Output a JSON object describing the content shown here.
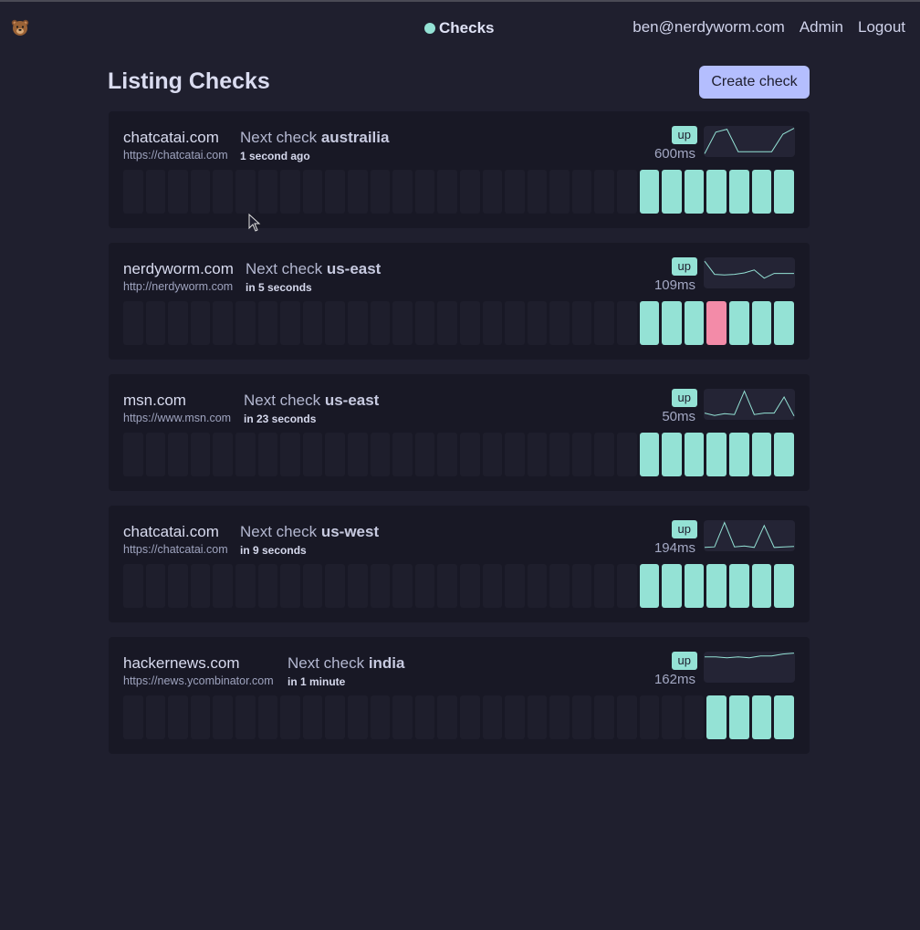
{
  "nav": {
    "logo_icon": "bear-icon",
    "brand": "Checks",
    "brand_dot_color": "#94e2d5",
    "email": "ben@nerdyworm.com",
    "admin": "Admin",
    "logout": "Logout"
  },
  "page": {
    "title": "Listing Checks",
    "create_label": "Create check"
  },
  "colors": {
    "up": "#94e2d5",
    "down": "#f38ba8",
    "empty": "#1e1e2c"
  },
  "checks": [
    {
      "domain": "chatcatai.com",
      "url": "https://chatcatai.com",
      "next_prefix": "Next check ",
      "region": "austrailia",
      "when": "1 second ago",
      "status": "up",
      "latency": "600ms",
      "history": [
        "up",
        "up",
        "up",
        "up",
        "up",
        "up",
        "up"
      ],
      "spark": [
        0.92,
        0.18,
        0.08,
        0.85,
        0.85,
        0.85,
        0.85,
        0.25,
        0.05
      ]
    },
    {
      "domain": "nerdyworm.com",
      "url": "http://nerdyworm.com",
      "next_prefix": "Next check ",
      "region": "us-east",
      "when": "in 5 seconds",
      "status": "up",
      "latency": "109ms",
      "history": [
        "up",
        "up",
        "up",
        "down",
        "up",
        "up",
        "up"
      ],
      "spark": [
        0.1,
        0.55,
        0.57,
        0.55,
        0.5,
        0.4,
        0.68,
        0.52,
        0.52,
        0.52
      ]
    },
    {
      "domain": "msn.com",
      "url": "https://www.msn.com",
      "next_prefix": "Next check ",
      "region": "us-east",
      "when": "in 23 seconds",
      "status": "up",
      "latency": "50ms",
      "history": [
        "up",
        "up",
        "up",
        "up",
        "up",
        "up",
        "up"
      ],
      "spark": [
        0.8,
        0.88,
        0.82,
        0.85,
        0.05,
        0.85,
        0.8,
        0.8,
        0.25,
        0.9
      ]
    },
    {
      "domain": "chatcatai.com",
      "url": "https://chatcatai.com",
      "next_prefix": "Next check ",
      "region": "us-west",
      "when": "in 9 seconds",
      "status": "up",
      "latency": "194ms",
      "history": [
        "up",
        "up",
        "up",
        "up",
        "up",
        "up",
        "up"
      ],
      "spark": [
        0.9,
        0.88,
        0.05,
        0.88,
        0.85,
        0.9,
        0.15,
        0.9,
        0.88,
        0.87
      ]
    },
    {
      "domain": "hackernews.com",
      "url": "https://news.ycombinator.com",
      "next_prefix": "Next check ",
      "region": "india",
      "when": "in 1 minute",
      "status": "up",
      "latency": "162ms",
      "history": [
        "up",
        "up",
        "up",
        "up"
      ],
      "spark": [
        0.15,
        0.15,
        0.18,
        0.15,
        0.18,
        0.12,
        0.12,
        0.05,
        0.02
      ]
    }
  ]
}
